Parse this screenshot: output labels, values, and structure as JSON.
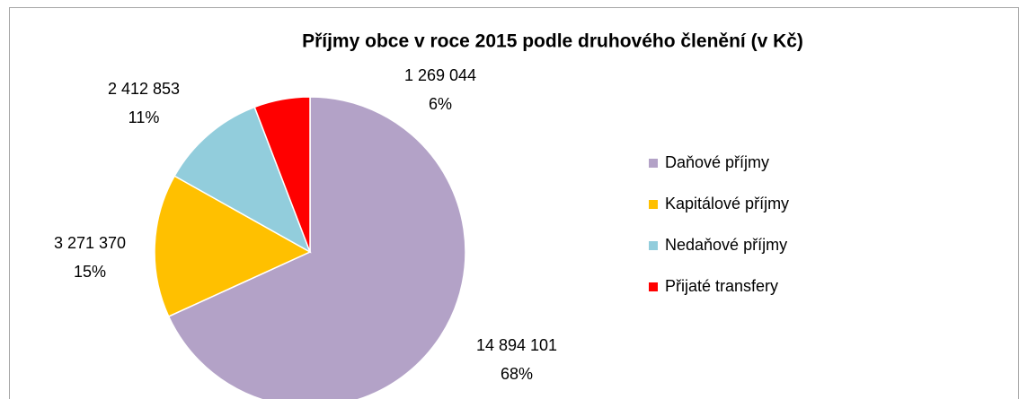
{
  "chart_data": {
    "type": "pie",
    "title": "Příjmy obce v roce 2015 podle druhového členění (v Kč)",
    "categories": [
      "Daňové příjmy",
      "Kapitálové příjmy",
      "Nedaňové příjmy",
      "Přijaté transfery"
    ],
    "values": [
      14894101,
      3271370,
      2412853,
      1269044
    ],
    "value_labels": [
      "14 894 101",
      "3 271 370",
      "2 412 853",
      "1 269 044"
    ],
    "percent_labels": [
      "68%",
      "15%",
      "11%",
      "6%"
    ],
    "colors": [
      "#b3a2c7",
      "#ffc000",
      "#92cddc",
      "#ff0000"
    ],
    "legend": "right"
  }
}
